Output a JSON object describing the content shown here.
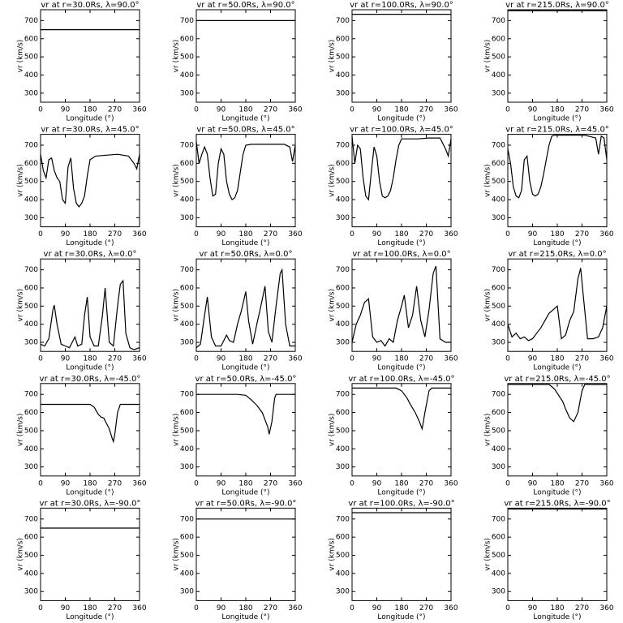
{
  "chart_data": [
    {
      "type": "line",
      "title": "vr at r=30.0Rs, λ=90.0°",
      "xlabel": "Longitude (°)",
      "ylabel": "vr (km/s)",
      "x": [
        0,
        360
      ],
      "values": [
        650,
        650
      ],
      "color": "#000000",
      "xlim": [
        0,
        360
      ],
      "ylim": [
        250,
        760
      ],
      "xticks": [
        0,
        90,
        180,
        270,
        360
      ],
      "yticks": [
        300,
        400,
        500,
        600,
        700
      ]
    },
    {
      "type": "line",
      "title": "vr at r=50.0Rs, λ=90.0°",
      "xlabel": "Longitude (°)",
      "ylabel": "vr (km/s)",
      "x": [
        0,
        360
      ],
      "values": [
        700,
        700
      ],
      "color": "#000000",
      "xlim": [
        0,
        360
      ],
      "ylim": [
        250,
        760
      ],
      "xticks": [
        0,
        90,
        180,
        270,
        360
      ],
      "yticks": [
        300,
        400,
        500,
        600,
        700
      ]
    },
    {
      "type": "line",
      "title": "vr at r=100.0Rs, λ=90.0°",
      "xlabel": "Longitude (°)",
      "ylabel": "vr (km/s)",
      "x": [
        0,
        360
      ],
      "values": [
        735,
        735
      ],
      "color": "#000000",
      "xlim": [
        0,
        360
      ],
      "ylim": [
        250,
        760
      ],
      "xticks": [
        0,
        90,
        180,
        270,
        360
      ],
      "yticks": [
        300,
        400,
        500,
        600,
        700
      ]
    },
    {
      "type": "line",
      "title": "vr at r=215.0Rs, λ=90.0°",
      "xlabel": "Longitude (°)",
      "ylabel": "vr (km/s)",
      "x": [
        0,
        360
      ],
      "values": [
        755,
        755
      ],
      "color": "#000000",
      "xlim": [
        0,
        360
      ],
      "ylim": [
        250,
        760
      ],
      "xticks": [
        0,
        90,
        180,
        270,
        360
      ],
      "yticks": [
        300,
        400,
        500,
        600,
        700
      ]
    },
    {
      "type": "line",
      "title": "vr at r=30.0Rs, λ=45.0°",
      "xlabel": "Longitude (°)",
      "ylabel": "vr (km/s)",
      "x": [
        0,
        10,
        20,
        30,
        40,
        50,
        60,
        70,
        80,
        90,
        100,
        110,
        120,
        130,
        140,
        150,
        160,
        170,
        180,
        200,
        240,
        280,
        320,
        340,
        350,
        360
      ],
      "values": [
        650,
        560,
        520,
        620,
        630,
        560,
        520,
        500,
        400,
        380,
        580,
        630,
        460,
        380,
        360,
        380,
        420,
        530,
        620,
        640,
        645,
        650,
        640,
        600,
        570,
        650
      ],
      "color": "#000000",
      "xlim": [
        0,
        360
      ],
      "ylim": [
        250,
        760
      ],
      "xticks": [
        0,
        90,
        180,
        270,
        360
      ],
      "yticks": [
        300,
        400,
        500,
        600,
        700
      ]
    },
    {
      "type": "line",
      "title": "vr at r=50.0Rs, λ=45.0°",
      "xlabel": "Longitude (°)",
      "ylabel": "vr (km/s)",
      "x": [
        0,
        10,
        20,
        30,
        40,
        50,
        60,
        70,
        80,
        90,
        100,
        110,
        120,
        130,
        140,
        150,
        160,
        170,
        180,
        200,
        240,
        280,
        320,
        340,
        350,
        360
      ],
      "values": [
        720,
        600,
        650,
        690,
        650,
        520,
        420,
        430,
        600,
        680,
        650,
        500,
        430,
        400,
        410,
        450,
        550,
        650,
        700,
        705,
        705,
        705,
        705,
        690,
        610,
        700
      ],
      "color": "#000000",
      "xlim": [
        0,
        360
      ],
      "ylim": [
        250,
        760
      ],
      "xticks": [
        0,
        90,
        180,
        270,
        360
      ],
      "yticks": [
        300,
        400,
        500,
        600,
        700
      ]
    },
    {
      "type": "line",
      "title": "vr at r=100.0Rs, λ=45.0°",
      "xlabel": "Longitude (°)",
      "ylabel": "vr (km/s)",
      "x": [
        0,
        10,
        20,
        30,
        40,
        50,
        60,
        70,
        80,
        90,
        100,
        110,
        120,
        130,
        140,
        150,
        160,
        170,
        180,
        200,
        240,
        280,
        320,
        340,
        350,
        360
      ],
      "values": [
        750,
        600,
        700,
        680,
        520,
        420,
        400,
        550,
        690,
        640,
        500,
        420,
        410,
        420,
        450,
        520,
        620,
        700,
        735,
        735,
        735,
        740,
        740,
        680,
        640,
        735
      ],
      "color": "#000000",
      "xlim": [
        0,
        360
      ],
      "ylim": [
        250,
        760
      ],
      "xticks": [
        0,
        90,
        180,
        270,
        360
      ],
      "yticks": [
        300,
        400,
        500,
        600,
        700
      ]
    },
    {
      "type": "line",
      "title": "vr at r=215.0Rs, λ=45.0°",
      "xlabel": "Longitude (°)",
      "ylabel": "vr (km/s)",
      "x": [
        0,
        10,
        20,
        30,
        40,
        50,
        60,
        70,
        80,
        90,
        100,
        110,
        120,
        130,
        140,
        150,
        160,
        170,
        180,
        200,
        240,
        280,
        320,
        330,
        340,
        350,
        360
      ],
      "values": [
        680,
        600,
        470,
        420,
        410,
        450,
        620,
        640,
        500,
        430,
        420,
        430,
        470,
        540,
        620,
        700,
        750,
        755,
        755,
        755,
        755,
        755,
        740,
        650,
        750,
        740,
        620
      ],
      "color": "#000000",
      "xlim": [
        0,
        360
      ],
      "ylim": [
        250,
        760
      ],
      "xticks": [
        0,
        90,
        180,
        270,
        360
      ],
      "yticks": [
        300,
        400,
        500,
        600,
        700
      ]
    },
    {
      "type": "line",
      "title": "vr at r=30.0Rs, λ=0.0°",
      "xlabel": "Longitude (°)",
      "ylabel": "vr (km/s)",
      "x": [
        0,
        15,
        30,
        45,
        50,
        60,
        75,
        90,
        105,
        115,
        125,
        135,
        150,
        160,
        170,
        180,
        195,
        210,
        225,
        235,
        250,
        265,
        280,
        290,
        300,
        310,
        325,
        340,
        360
      ],
      "values": [
        290,
        280,
        320,
        480,
        505,
        400,
        290,
        280,
        270,
        300,
        330,
        280,
        290,
        450,
        550,
        330,
        280,
        280,
        450,
        600,
        300,
        280,
        500,
        620,
        640,
        350,
        270,
        260,
        270
      ],
      "color": "#000000",
      "xlim": [
        0,
        360
      ],
      "ylim": [
        250,
        760
      ],
      "xticks": [
        0,
        90,
        180,
        270,
        360
      ],
      "yticks": [
        300,
        400,
        500,
        600,
        700
      ]
    },
    {
      "type": "line",
      "title": "vr at r=50.0Rs, λ=0.0°",
      "xlabel": "Longitude (°)",
      "ylabel": "vr (km/s)",
      "x": [
        0,
        15,
        30,
        40,
        55,
        70,
        90,
        110,
        120,
        135,
        150,
        165,
        180,
        190,
        205,
        220,
        235,
        250,
        262,
        275,
        290,
        305,
        312,
        325,
        340,
        360
      ],
      "values": [
        270,
        290,
        450,
        550,
        330,
        280,
        280,
        340,
        310,
        300,
        400,
        480,
        580,
        420,
        290,
        400,
        500,
        610,
        360,
        300,
        500,
        680,
        700,
        400,
        280,
        280
      ],
      "color": "#000000",
      "xlim": [
        0,
        360
      ],
      "ylim": [
        250,
        760
      ],
      "xticks": [
        0,
        90,
        180,
        270,
        360
      ],
      "yticks": [
        300,
        400,
        500,
        600,
        700
      ]
    },
    {
      "type": "line",
      "title": "vr at r=100.0Rs, λ=0.0°",
      "xlabel": "Longitude (°)",
      "ylabel": "vr (km/s)",
      "x": [
        0,
        15,
        30,
        45,
        60,
        75,
        90,
        105,
        120,
        135,
        150,
        165,
        180,
        190,
        205,
        220,
        235,
        250,
        265,
        280,
        295,
        305,
        320,
        340,
        360
      ],
      "values": [
        300,
        400,
        450,
        520,
        540,
        330,
        300,
        310,
        280,
        320,
        300,
        420,
        500,
        560,
        380,
        450,
        610,
        420,
        330,
        480,
        680,
        720,
        320,
        300,
        300
      ],
      "color": "#000000",
      "xlim": [
        0,
        360
      ],
      "ylim": [
        250,
        760
      ],
      "xticks": [
        0,
        90,
        180,
        270,
        360
      ],
      "yticks": [
        300,
        400,
        500,
        600,
        700
      ]
    },
    {
      "type": "line",
      "title": "vr at r=215.0Rs, λ=0.0°",
      "xlabel": "Longitude (°)",
      "ylabel": "vr (km/s)",
      "x": [
        0,
        15,
        30,
        45,
        60,
        75,
        90,
        105,
        120,
        135,
        150,
        165,
        180,
        195,
        210,
        225,
        240,
        255,
        265,
        275,
        290,
        310,
        330,
        345,
        360
      ],
      "values": [
        400,
        330,
        350,
        320,
        330,
        310,
        320,
        350,
        380,
        420,
        460,
        480,
        500,
        320,
        340,
        420,
        470,
        650,
        710,
        550,
        320,
        320,
        330,
        380,
        500
      ],
      "color": "#000000",
      "xlim": [
        0,
        360
      ],
      "ylim": [
        250,
        760
      ],
      "xticks": [
        0,
        90,
        180,
        270,
        360
      ],
      "yticks": [
        300,
        400,
        500,
        600,
        700
      ]
    },
    {
      "type": "line",
      "title": "vr at r=30.0Rs, λ=-45.0°",
      "xlabel": "Longitude (°)",
      "ylabel": "vr (km/s)",
      "x": [
        0,
        180,
        195,
        210,
        220,
        230,
        240,
        250,
        260,
        265,
        270,
        280,
        290,
        360
      ],
      "values": [
        645,
        645,
        630,
        590,
        575,
        570,
        540,
        510,
        460,
        440,
        480,
        600,
        645,
        645
      ],
      "color": "#000000",
      "xlim": [
        0,
        360
      ],
      "ylim": [
        250,
        760
      ],
      "xticks": [
        0,
        90,
        180,
        270,
        360
      ],
      "yticks": [
        300,
        400,
        500,
        600,
        700
      ]
    },
    {
      "type": "line",
      "title": "vr at r=50.0Rs, λ=-45.0°",
      "xlabel": "Longitude (°)",
      "ylabel": "vr (km/s)",
      "x": [
        0,
        150,
        180,
        200,
        220,
        240,
        260,
        265,
        275,
        285,
        290,
        360
      ],
      "values": [
        700,
        700,
        695,
        670,
        640,
        600,
        520,
        480,
        550,
        680,
        700,
        700
      ],
      "color": "#000000",
      "xlim": [
        0,
        360
      ],
      "ylim": [
        250,
        760
      ],
      "xticks": [
        0,
        90,
        180,
        270,
        360
      ],
      "yticks": [
        300,
        400,
        500,
        600,
        700
      ]
    },
    {
      "type": "line",
      "title": "vr at r=100.0Rs, λ=-45.0°",
      "xlabel": "Longitude (°)",
      "ylabel": "vr (km/s)",
      "x": [
        0,
        160,
        180,
        200,
        210,
        230,
        245,
        255,
        265,
        280,
        290,
        360
      ],
      "values": [
        735,
        735,
        720,
        680,
        650,
        600,
        550,
        510,
        600,
        720,
        735,
        735
      ],
      "color": "#000000",
      "xlim": [
        0,
        360
      ],
      "ylim": [
        250,
        760
      ],
      "xticks": [
        0,
        90,
        180,
        270,
        360
      ],
      "yticks": [
        300,
        400,
        500,
        600,
        700
      ]
    },
    {
      "type": "line",
      "title": "vr at r=215.0Rs, λ=-45.0°",
      "xlabel": "Longitude (°)",
      "ylabel": "vr (km/s)",
      "x": [
        0,
        150,
        170,
        200,
        210,
        225,
        240,
        255,
        270,
        280,
        360
      ],
      "values": [
        755,
        755,
        730,
        660,
        620,
        570,
        550,
        600,
        720,
        755,
        755
      ],
      "color": "#000000",
      "xlim": [
        0,
        360
      ],
      "ylim": [
        250,
        760
      ],
      "xticks": [
        0,
        90,
        180,
        270,
        360
      ],
      "yticks": [
        300,
        400,
        500,
        600,
        700
      ]
    },
    {
      "type": "line",
      "title": "vr at r=30.0Rs, λ=-90.0°",
      "xlabel": "Longitude (°)",
      "ylabel": "vr (km/s)",
      "x": [
        0,
        360
      ],
      "values": [
        650,
        650
      ],
      "color": "#000000",
      "xlim": [
        0,
        360
      ],
      "ylim": [
        250,
        760
      ],
      "xticks": [
        0,
        90,
        180,
        270,
        360
      ],
      "yticks": [
        300,
        400,
        500,
        600,
        700
      ]
    },
    {
      "type": "line",
      "title": "vr at r=50.0Rs, λ=-90.0°",
      "xlabel": "Longitude (°)",
      "ylabel": "vr (km/s)",
      "x": [
        0,
        360
      ],
      "values": [
        700,
        700
      ],
      "color": "#000000",
      "xlim": [
        0,
        360
      ],
      "ylim": [
        250,
        760
      ],
      "xticks": [
        0,
        90,
        180,
        270,
        360
      ],
      "yticks": [
        300,
        400,
        500,
        600,
        700
      ]
    },
    {
      "type": "line",
      "title": "vr at r=100.0Rs, λ=-90.0°",
      "xlabel": "Longitude (°)",
      "ylabel": "vr (km/s)",
      "x": [
        0,
        360
      ],
      "values": [
        735,
        735
      ],
      "color": "#000000",
      "xlim": [
        0,
        360
      ],
      "ylim": [
        250,
        760
      ],
      "xticks": [
        0,
        90,
        180,
        270,
        360
      ],
      "yticks": [
        300,
        400,
        500,
        600,
        700
      ]
    },
    {
      "type": "line",
      "title": "vr at r=215.0Rs, λ=-90.0°",
      "xlabel": "Longitude (°)",
      "ylabel": "vr (km/s)",
      "x": [
        0,
        360
      ],
      "values": [
        755,
        755
      ],
      "color": "#000000",
      "xlim": [
        0,
        360
      ],
      "ylim": [
        250,
        760
      ],
      "xticks": [
        0,
        90,
        180,
        270,
        360
      ],
      "yticks": [
        300,
        400,
        500,
        600,
        700
      ]
    }
  ]
}
